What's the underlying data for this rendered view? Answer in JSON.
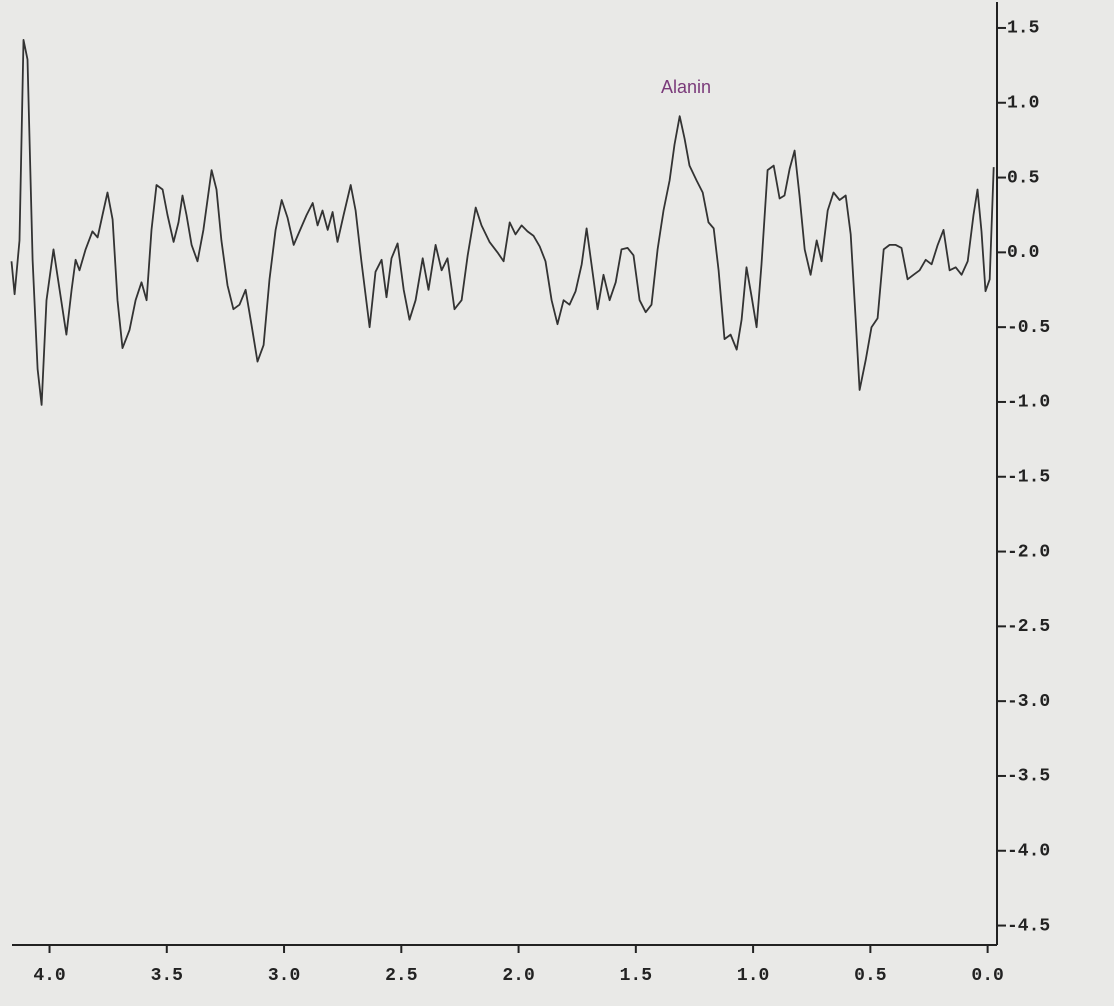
{
  "chart_data": {
    "type": "line",
    "annotation": "Alanin",
    "color": "#333333",
    "xlim": [
      4.16,
      -0.04
    ],
    "ylim": [
      -4.63,
      1.62
    ],
    "xticks": [
      {
        "value": 4.0,
        "label": "4.0"
      },
      3.5,
      {
        "value": 3.0,
        "label": "3.0"
      },
      2.5,
      {
        "value": 2.0,
        "label": "2.0"
      },
      1.5,
      {
        "value": 1.0,
        "label": "1.0"
      },
      0.5,
      {
        "value": 0,
        "label": "0.0"
      }
    ],
    "yticks": [
      1.5,
      {
        "value": 1.0,
        "label": "1.0"
      },
      0.5,
      {
        "value": 0,
        "label": "0.0"
      },
      -0.5,
      {
        "value": -1.0,
        "label": "-1.0"
      },
      -1.5,
      {
        "value": -2.0,
        "label": "-2.0"
      },
      -2.5,
      {
        "value": -3.0,
        "label": "-3.0"
      },
      -3.5,
      {
        "value": -4.0,
        "label": "-4.0"
      },
      -4.5
    ],
    "x": [
      4.162,
      4.149,
      4.128,
      4.111,
      4.094,
      4.072,
      4.051,
      4.034,
      4.013,
      3.983,
      3.957,
      3.928,
      3.906,
      3.889,
      3.872,
      3.846,
      3.817,
      3.795,
      3.774,
      3.753,
      3.731,
      3.71,
      3.689,
      3.659,
      3.633,
      3.608,
      3.586,
      3.565,
      3.544,
      3.518,
      3.497,
      3.471,
      3.45,
      3.433,
      3.416,
      3.394,
      3.369,
      3.344,
      3.309,
      3.288,
      3.267,
      3.241,
      3.216,
      3.19,
      3.164,
      3.139,
      3.113,
      3.087,
      3.062,
      3.036,
      3.01,
      2.985,
      2.959,
      2.934,
      2.904,
      2.878,
      2.857,
      2.836,
      2.814,
      2.793,
      2.772,
      2.746,
      2.716,
      2.695,
      2.67,
      2.635,
      2.61,
      2.584,
      2.563,
      2.542,
      2.516,
      2.49,
      2.465,
      2.439,
      2.409,
      2.384,
      2.354,
      2.328,
      2.303,
      2.273,
      2.243,
      2.217,
      2.183,
      2.158,
      2.124,
      2.09,
      2.064,
      2.038,
      2.013,
      1.987,
      1.962,
      1.936,
      1.91,
      1.885,
      1.859,
      1.834,
      1.808,
      1.783,
      1.757,
      1.731,
      1.71,
      1.689,
      1.663,
      1.638,
      1.612,
      1.586,
      1.561,
      1.535,
      1.51,
      1.484,
      1.458,
      1.433,
      1.407,
      1.382,
      1.356,
      1.335,
      1.313,
      1.292,
      1.271,
      1.241,
      1.215,
      1.19,
      1.168,
      1.147,
      1.122,
      1.096,
      1.07,
      1.049,
      1.028,
      1.006,
      0.985,
      0.964,
      0.938,
      0.912,
      0.887,
      0.866,
      0.844,
      0.823,
      0.802,
      0.78,
      0.755,
      0.729,
      0.708,
      0.682,
      0.657,
      0.631,
      0.605,
      0.584,
      0.563,
      0.546,
      0.52,
      0.495,
      0.469,
      0.443,
      0.418,
      0.392,
      0.367,
      0.341,
      0.316,
      0.29,
      0.264,
      0.239,
      0.213,
      0.188,
      0.162,
      0.136,
      0.111,
      0.085,
      0.06,
      0.043,
      0.026,
      0.009,
      -0.009,
      -0.026
    ],
    "values": [
      -0.06,
      -0.28,
      0.08,
      1.42,
      1.29,
      -0.05,
      -0.78,
      -1.02,
      -0.32,
      0.02,
      -0.25,
      -0.55,
      -0.25,
      -0.05,
      -0.12,
      0.02,
      0.14,
      0.1,
      0.25,
      0.4,
      0.22,
      -0.32,
      -0.64,
      -0.52,
      -0.32,
      -0.2,
      -0.32,
      0.15,
      0.45,
      0.42,
      0.25,
      0.07,
      0.2,
      0.38,
      0.25,
      0.05,
      -0.06,
      0.15,
      0.55,
      0.42,
      0.08,
      -0.22,
      -0.38,
      -0.35,
      -0.25,
      -0.48,
      -0.73,
      -0.62,
      -0.18,
      0.15,
      0.35,
      0.23,
      0.05,
      0.14,
      0.25,
      0.33,
      0.18,
      0.28,
      0.15,
      0.27,
      0.07,
      0.25,
      0.45,
      0.28,
      -0.06,
      -0.5,
      -0.13,
      -0.05,
      -0.3,
      -0.04,
      0.06,
      -0.25,
      -0.45,
      -0.32,
      -0.04,
      -0.25,
      0.05,
      -0.12,
      -0.04,
      -0.38,
      -0.32,
      -0.02,
      0.3,
      0.18,
      0.07,
      0.0,
      -0.06,
      0.2,
      0.12,
      0.18,
      0.14,
      0.11,
      0.04,
      -0.06,
      -0.32,
      -0.48,
      -0.32,
      -0.35,
      -0.26,
      -0.08,
      0.16,
      -0.08,
      -0.38,
      -0.15,
      -0.32,
      -0.2,
      0.02,
      0.03,
      -0.02,
      -0.32,
      -0.4,
      -0.35,
      0.02,
      0.28,
      0.48,
      0.72,
      0.91,
      0.76,
      0.58,
      0.48,
      0.4,
      0.2,
      0.16,
      -0.12,
      -0.58,
      -0.55,
      -0.65,
      -0.45,
      -0.1,
      -0.3,
      -0.5,
      -0.08,
      0.55,
      0.58,
      0.36,
      0.38,
      0.56,
      0.68,
      0.38,
      0.02,
      -0.15,
      0.08,
      -0.06,
      0.28,
      0.4,
      0.35,
      0.38,
      0.12,
      -0.44,
      -0.92,
      -0.72,
      -0.5,
      -0.44,
      0.02,
      0.05,
      0.05,
      0.03,
      -0.18,
      -0.15,
      -0.12,
      -0.05,
      -0.08,
      0.05,
      0.15,
      -0.12,
      -0.1,
      -0.15,
      -0.06,
      0.25,
      0.42,
      0.14,
      -0.26,
      -0.18,
      0.57
    ]
  }
}
